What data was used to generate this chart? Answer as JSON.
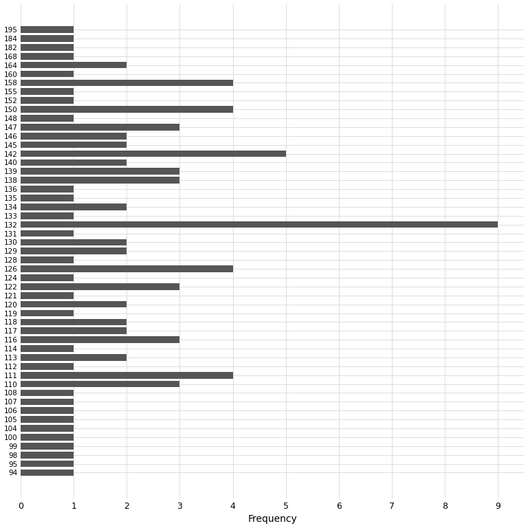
{
  "categories": [
    "195",
    "184",
    "182",
    "168",
    "164",
    "160",
    "158",
    "155",
    "152",
    "150",
    "148",
    "147",
    "146",
    "145",
    "142",
    "140",
    "139",
    "138",
    "136",
    "135",
    "134",
    "133",
    "132",
    "131",
    "130",
    "129",
    "128",
    "126",
    "124",
    "122",
    "121",
    "120",
    "119",
    "118",
    "117",
    "116",
    "114",
    "113",
    "112",
    "111",
    "110",
    "108",
    "107",
    "106",
    "105",
    "104",
    "100",
    "99",
    "98",
    "95",
    "94"
  ],
  "values": [
    1,
    1,
    1,
    1,
    2,
    1,
    4,
    1,
    1,
    4,
    1,
    3,
    2,
    2,
    5,
    2,
    3,
    3,
    1,
    1,
    2,
    1,
    9,
    1,
    2,
    2,
    1,
    4,
    1,
    3,
    1,
    2,
    1,
    2,
    2,
    3,
    1,
    2,
    1,
    4,
    3,
    1,
    1,
    1,
    1,
    1,
    1,
    1,
    1,
    1,
    1
  ],
  "bar_color": "#555555",
  "xlabel": "Frequency",
  "background_color": "#ffffff",
  "grid_color": "#dddddd",
  "xlim": [
    0,
    9.5
  ],
  "xticks": [
    0,
    1,
    2,
    3,
    4,
    5,
    6,
    7,
    8,
    9
  ]
}
